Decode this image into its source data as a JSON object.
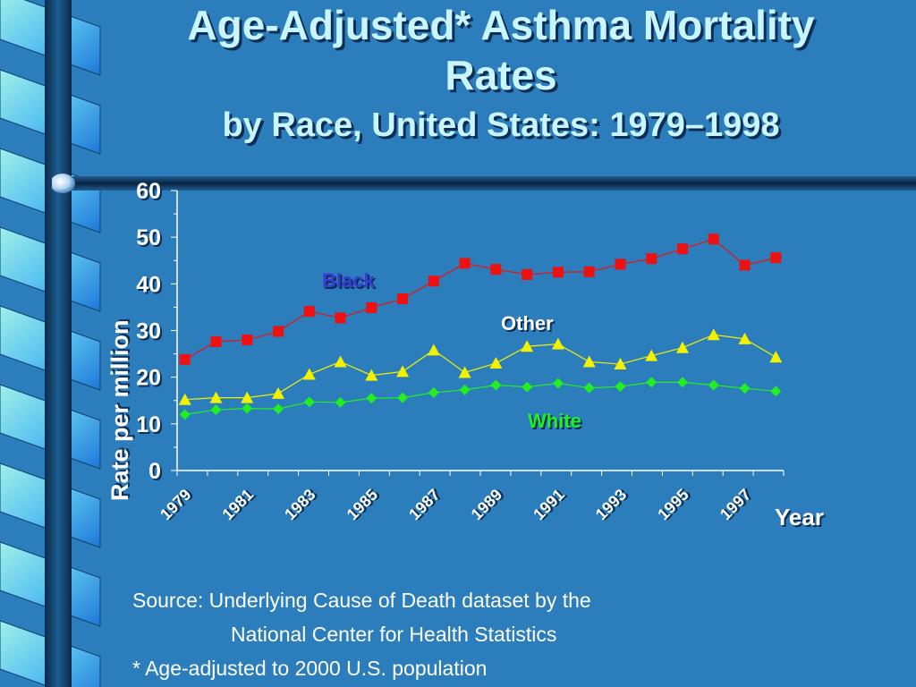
{
  "title": {
    "line1": "Age-Adjusted* Asthma Mortality",
    "line2": "Rates",
    "line3": "by Race, United States: 1979–1998"
  },
  "chart_data": {
    "type": "line",
    "ylabel": "Rate per million",
    "xlabel": "Year",
    "ylim": [
      0,
      60
    ],
    "y_ticks": [
      0,
      10,
      20,
      30,
      40,
      50,
      60
    ],
    "x": [
      1979,
      1980,
      1981,
      1982,
      1983,
      1984,
      1985,
      1986,
      1987,
      1988,
      1989,
      1990,
      1991,
      1992,
      1993,
      1994,
      1995,
      1996,
      1997,
      1998
    ],
    "x_tick_labels": [
      "1979",
      "1981",
      "1983",
      "1985",
      "1987",
      "1989",
      "1991",
      "1993",
      "1995",
      "1997"
    ],
    "series": [
      {
        "name": "Black",
        "marker": "square",
        "color": "#EE1111",
        "label_color": "#3A3AD6",
        "values": [
          23.8,
          27.6,
          28.0,
          29.8,
          34.1,
          32.7,
          34.9,
          36.8,
          40.6,
          44.4,
          43.1,
          42.0,
          42.5,
          42.6,
          44.2,
          45.4,
          47.5,
          49.6,
          44.0,
          45.6
        ]
      },
      {
        "name": "Other",
        "marker": "triangle",
        "color": "#F2F200",
        "label_color": "#FFFFFF",
        "values": [
          15.2,
          15.6,
          15.6,
          16.5,
          20.6,
          23.3,
          20.4,
          21.2,
          25.8,
          21.0,
          23.0,
          26.6,
          27.1,
          23.3,
          22.8,
          24.6,
          26.3,
          29.1,
          28.2,
          24.3
        ]
      },
      {
        "name": "White",
        "marker": "diamond",
        "color": "#22EE22",
        "label_color": "#22EE22",
        "values": [
          12.0,
          13.0,
          13.3,
          13.2,
          14.7,
          14.6,
          15.5,
          15.6,
          16.7,
          17.3,
          18.3,
          17.9,
          18.7,
          17.7,
          18.0,
          18.9,
          18.9,
          18.3,
          17.6,
          17.0
        ]
      }
    ],
    "grid": false
  },
  "source": {
    "line1": "Source: Underlying Cause of Death dataset by the",
    "line2": "National Center for Health Statistics",
    "line3": "* Age-adjusted to  2000 U.S. population"
  }
}
